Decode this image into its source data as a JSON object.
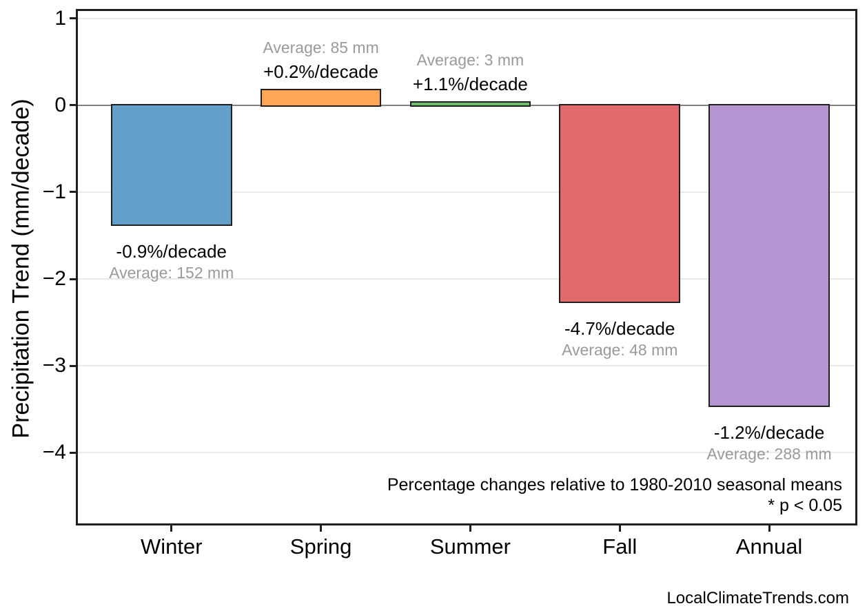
{
  "page": {
    "background": "#ffffff",
    "footer": "LocalClimateTrends.com"
  },
  "chart_data": {
    "type": "bar",
    "title": "",
    "xlabel": "",
    "ylabel": "Precipitation Trend (mm/decade)",
    "categories": [
      "Winter",
      "Spring",
      "Summer",
      "Fall",
      "Annual"
    ],
    "values": [
      -1.37,
      0.17,
      0.03,
      -2.26,
      -3.46
    ],
    "bar_colors": [
      "#62A0CA",
      "#FFA656",
      "#6CBD6C",
      "#E2696B",
      "#B494D1"
    ],
    "bar_edge_color": "#1f1f1f",
    "bar_width": 0.81,
    "bar_annotations": [
      {
        "pct": "-0.9%/decade",
        "avg": "Average: 152 mm"
      },
      {
        "pct": "+0.2%/decade",
        "avg": "Average: 85 mm"
      },
      {
        "pct": "+1.1%/decade",
        "avg": "Average: 3 mm"
      },
      {
        "pct": "-4.7%/decade",
        "avg": "Average: 48 mm"
      },
      {
        "pct": "-1.2%/decade",
        "avg": "Average: 288 mm"
      }
    ],
    "yticks": [
      1,
      0,
      -1,
      -2,
      -3,
      -4
    ],
    "ytick_labels": [
      "1",
      "0",
      "−1",
      "−2",
      "−3",
      "−4"
    ],
    "ylim": [
      -4.84,
      1.11
    ],
    "xlim": [
      -0.64,
      4.59
    ],
    "grid": "horizontal-light",
    "legend": "none",
    "grid_color": "#eaeaea",
    "zero_line_color": "#808080",
    "pct_label_color": "#000000",
    "avg_label_color": "#9a9a9a",
    "note_line1": "Percentage changes relative to 1980-2010 seasonal means",
    "note_line2": "* p < 0.05"
  }
}
